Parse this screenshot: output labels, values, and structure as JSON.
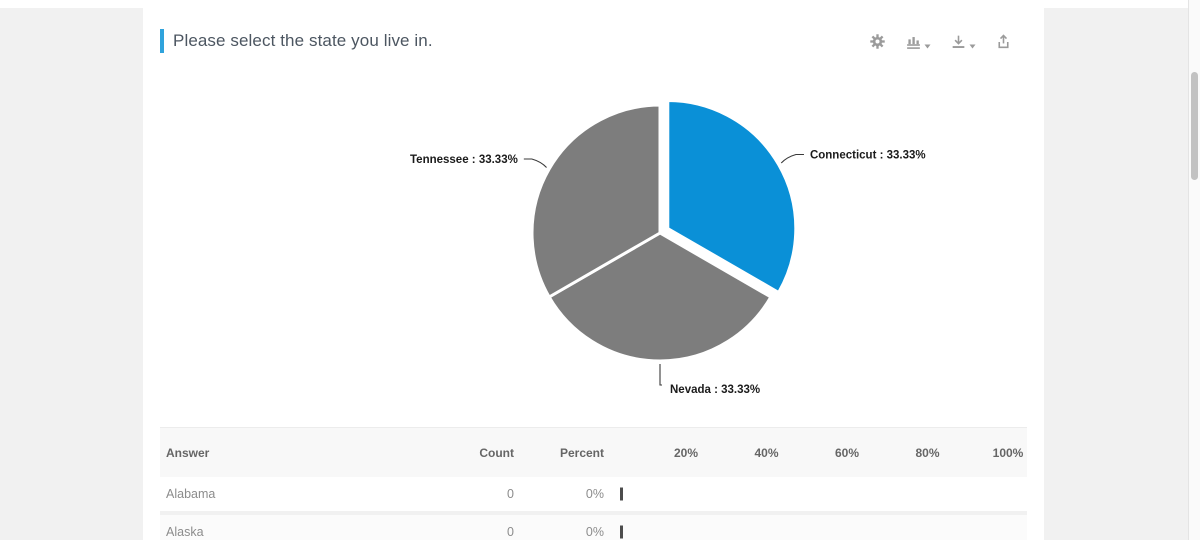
{
  "panel": {
    "title": "Please select the state you live in.",
    "accent_color": "#2fa3dc"
  },
  "toolbar": {
    "buttons": [
      {
        "icon": "gear-icon",
        "has_caret": false
      },
      {
        "icon": "bar-chart-icon",
        "has_caret": true
      },
      {
        "icon": "download-icon",
        "has_caret": true
      },
      {
        "icon": "share-export-icon",
        "has_caret": false
      }
    ]
  },
  "chart_data": {
    "type": "pie",
    "title": "Please select the state you live in.",
    "direction": "clockwise",
    "start_angle_deg": 0,
    "legend": "none",
    "slices": [
      {
        "name": "Connecticut",
        "value": 33.33,
        "display": "Connecticut : 33.33%",
        "color": "#0a90d7",
        "exploded": true
      },
      {
        "name": "Nevada",
        "value": 33.33,
        "display": "Nevada : 33.33%",
        "color": "#7d7d7d",
        "exploded": false
      },
      {
        "name": "Tennessee",
        "value": 33.33,
        "display": "Tennessee : 33.33%",
        "color": "#7d7d7d",
        "exploded": false
      }
    ]
  },
  "table": {
    "columns": {
      "answer": "Answer",
      "count": "Count",
      "percent": "Percent"
    },
    "scale_labels": [
      "20%",
      "40%",
      "60%",
      "80%",
      "100%"
    ],
    "rows": [
      {
        "answer": "Alabama",
        "count": "0",
        "percent": "0%",
        "bar": 0
      },
      {
        "answer": "Alaska",
        "count": "0",
        "percent": "0%",
        "bar": 0
      }
    ]
  },
  "colors": {
    "page_background": "#f1f1f1",
    "card_background": "#ffffff",
    "pie_label_text": "#1b1b1b",
    "leader_line": "#3a3a3a",
    "slice_separator": "#ffffff",
    "zero_bar": "#4c4c4c"
  }
}
